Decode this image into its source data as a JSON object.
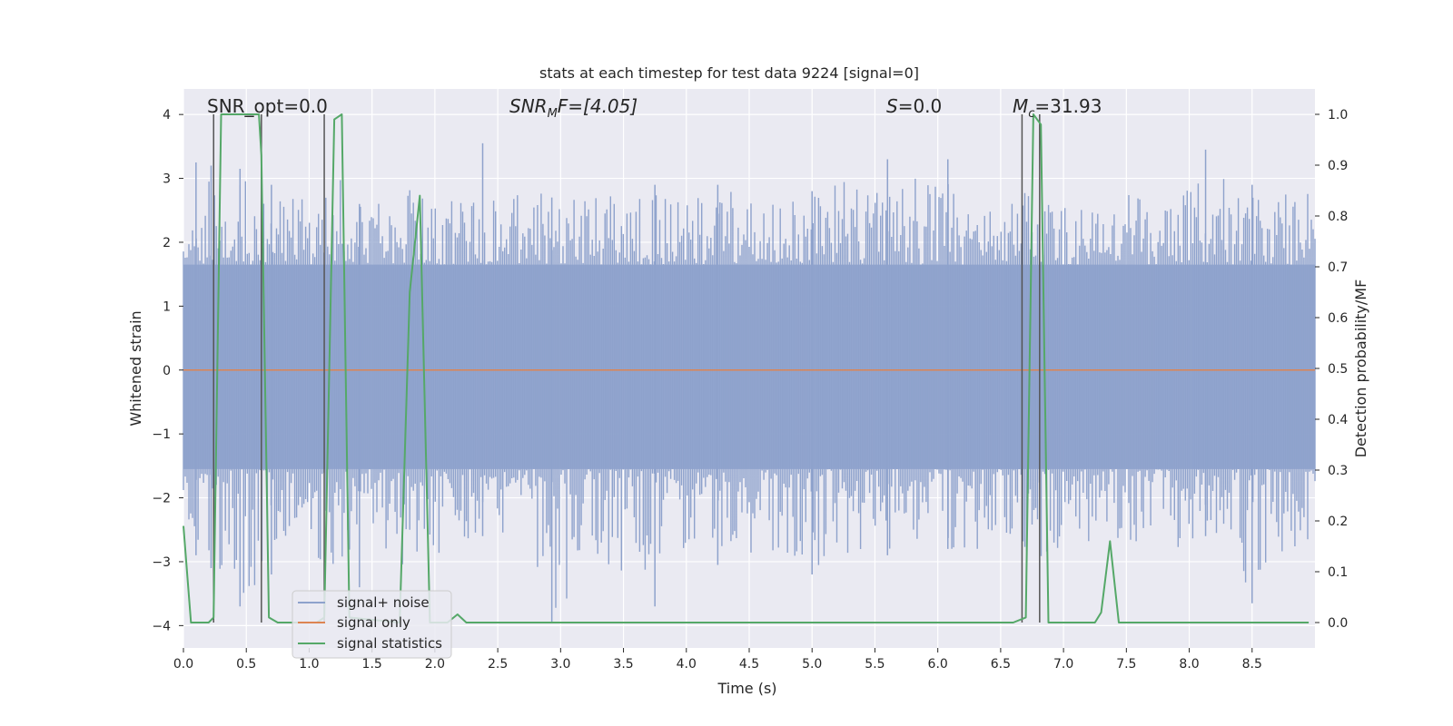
{
  "chart_data": {
    "type": "line",
    "title": "stats at each timestep for test data 9224 [signal=0]",
    "xlabel": "Time (s)",
    "ylabel": "Whitened strain",
    "y2label": "Detection probability/MF",
    "xlim": [
      0.0,
      9.0
    ],
    "ylim": [
      -4.35,
      4.4
    ],
    "y2lim": [
      -0.05,
      1.05
    ],
    "xticks": [
      0.0,
      0.5,
      1.0,
      1.5,
      2.0,
      2.5,
      3.0,
      3.5,
      4.0,
      4.5,
      5.0,
      5.5,
      6.0,
      6.5,
      7.0,
      7.5,
      8.0,
      8.5
    ],
    "xtick_labels": [
      "0.0",
      "0.5",
      "1.0",
      "1.5",
      "2.0",
      "2.5",
      "3.0",
      "3.5",
      "4.0",
      "4.5",
      "5.0",
      "5.5",
      "6.0",
      "6.5",
      "7.0",
      "7.5",
      "8.0",
      "8.5"
    ],
    "yticks": [
      4,
      3,
      2,
      1,
      0,
      -1,
      -2,
      -3,
      -4
    ],
    "ytick_labels": [
      "4",
      "3",
      "2",
      "1",
      "0",
      "−1",
      "−2",
      "−3",
      "−4"
    ],
    "y2ticks": [
      1.0,
      0.9,
      0.8,
      0.7,
      0.6,
      0.5,
      0.4,
      0.3,
      0.2,
      0.1,
      0.0
    ],
    "y2tick_labels": [
      "1.0",
      "0.9",
      "0.8",
      "0.7",
      "0.6",
      "0.5",
      "0.4",
      "0.3",
      "0.2",
      "0.1",
      "0.0"
    ],
    "grid": true,
    "legend_position": "lower-left",
    "legend": [
      "signal+ noise",
      "signal only",
      "signal statistics"
    ],
    "colors": {
      "noise": "#8ea2cc",
      "signal": "#dd8452",
      "stats": "#55a868",
      "vlines": "#555555",
      "bg": "#eaeaf2"
    },
    "annotations": {
      "snr_opt": "SNR_opt=0.0",
      "snr_mf_base": "SNR",
      "snr_mf_sub": "M",
      "snr_mf_rest": "F=[4.05]",
      "s_italic": "S",
      "s_rest": "=0.0",
      "mc_base": "M",
      "mc_sub": "c",
      "mc_rest": "=31.93"
    },
    "noise_envelope": {
      "x": [
        0.0,
        0.25,
        0.5,
        0.75,
        1.0,
        1.25,
        1.5,
        1.75,
        2.0,
        2.25,
        2.5,
        2.75,
        3.0,
        3.25,
        3.5,
        3.75,
        4.0,
        4.25,
        4.5,
        4.75,
        5.0,
        5.25,
        5.5,
        5.75,
        6.0,
        6.25,
        6.5,
        6.75,
        7.0,
        7.25,
        7.5,
        7.75,
        8.0,
        8.25,
        8.5,
        8.75,
        9.0
      ],
      "upper": [
        1.9,
        3.2,
        3.1,
        2.9,
        2.8,
        3.0,
        2.7,
        2.9,
        2.6,
        2.7,
        2.8,
        2.7,
        2.9,
        2.8,
        2.7,
        2.8,
        2.6,
        2.9,
        2.8,
        2.7,
        2.7,
        3.0,
        2.8,
        3.0,
        3.3,
        2.9,
        2.7,
        2.8,
        2.8,
        2.7,
        2.8,
        2.7,
        2.9,
        3.4,
        2.7,
        2.9,
        2.8
      ],
      "lower": [
        -2.4,
        -3.0,
        -3.7,
        -3.1,
        -3.3,
        -3.0,
        -2.6,
        -3.4,
        -2.9,
        -2.7,
        -2.6,
        -2.9,
        -3.9,
        -3.1,
        -3.7,
        -2.9,
        -2.8,
        -2.9,
        -3.1,
        -2.8,
        -3.2,
        -2.9,
        -2.9,
        -2.8,
        -2.8,
        -2.9,
        -2.7,
        -3.0,
        -2.8,
        -2.9,
        -2.7,
        -2.8,
        -2.8,
        -3.0,
        -3.5,
        -3.0,
        -2.9
      ]
    },
    "noise_spikes": [
      {
        "x": 0.1,
        "up": 3.25,
        "down": -2.9
      },
      {
        "x": 0.22,
        "up": 3.2,
        "down": -3.1
      },
      {
        "x": 0.45,
        "up": 3.15,
        "down": -3.7
      },
      {
        "x": 0.7,
        "up": 2.9,
        "down": -3.2
      },
      {
        "x": 1.4,
        "up": 2.6,
        "down": -3.4
      },
      {
        "x": 2.38,
        "up": 3.55,
        "down": -2.6
      },
      {
        "x": 2.93,
        "up": 2.7,
        "down": -3.95
      },
      {
        "x": 3.75,
        "up": 2.9,
        "down": -3.7
      },
      {
        "x": 4.25,
        "up": 2.9,
        "down": -3.05
      },
      {
        "x": 5.0,
        "up": 2.8,
        "down": -3.2
      },
      {
        "x": 5.6,
        "up": 3.3,
        "down": -2.9
      },
      {
        "x": 6.08,
        "up": 3.3,
        "down": -2.8
      },
      {
        "x": 8.13,
        "up": 3.45,
        "down": -2.6
      },
      {
        "x": 8.5,
        "up": 2.9,
        "down": -3.65
      }
    ],
    "series": [
      {
        "name": "signal+ noise",
        "axis": "left",
        "band_upper": 1.65,
        "band_lower": -1.55
      },
      {
        "name": "signal only",
        "axis": "left",
        "x": [
          0.0,
          9.0
        ],
        "values": [
          0.0,
          0.0
        ]
      },
      {
        "name": "signal statistics",
        "axis": "right",
        "x": [
          0.0,
          0.06,
          0.2,
          0.24,
          0.3,
          0.6,
          0.62,
          0.68,
          0.75,
          1.06,
          1.12,
          1.2,
          1.26,
          1.32,
          1.72,
          1.8,
          1.88,
          1.96,
          2.0,
          2.1,
          2.18,
          2.25,
          2.3,
          5.73,
          6.6,
          6.7,
          6.76,
          6.82,
          6.88,
          7.25,
          7.3,
          7.37,
          7.44,
          7.5,
          8.95
        ],
        "values": [
          0.19,
          0.0,
          0.0,
          0.01,
          1.0,
          1.0,
          0.92,
          0.01,
          0.0,
          0.0,
          0.01,
          0.99,
          1.0,
          0.01,
          0.0,
          0.65,
          0.84,
          0.0,
          0.0,
          0.0,
          0.016,
          0.0,
          0.0,
          0.0,
          0.0,
          0.01,
          1.0,
          0.98,
          0.0,
          0.0,
          0.02,
          0.16,
          0.0,
          0.0,
          0.0
        ]
      }
    ],
    "vertical_lines": [
      {
        "x": 0.24,
        "y_top": 1.0,
        "y_bottom": 0.0
      },
      {
        "x": 0.62,
        "y_top": 1.0,
        "y_bottom": 0.0
      },
      {
        "x": 1.12,
        "y_top": 1.0,
        "y_bottom": 0.0
      },
      {
        "x": 6.67,
        "y_top": 1.0,
        "y_bottom": 0.0
      },
      {
        "x": 6.81,
        "y_top": 1.0,
        "y_bottom": 0.0
      }
    ]
  }
}
